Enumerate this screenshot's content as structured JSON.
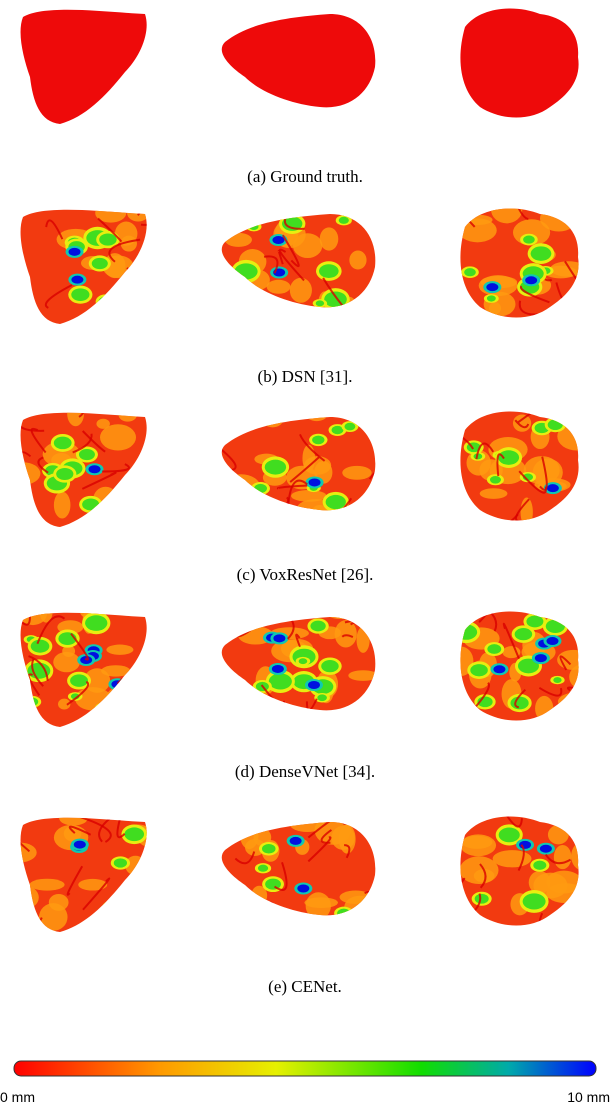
{
  "figure": {
    "rows": [
      {
        "caption": "(a) Ground truth."
      },
      {
        "caption": "(b) DSN [31]."
      },
      {
        "caption": "(c) VoxResNet [26]."
      },
      {
        "caption": "(d) DenseVNet [34]."
      },
      {
        "caption": "(e) CENet."
      }
    ],
    "colorbar": {
      "min_label": "0 mm",
      "max_label": "10 mm"
    }
  }
}
